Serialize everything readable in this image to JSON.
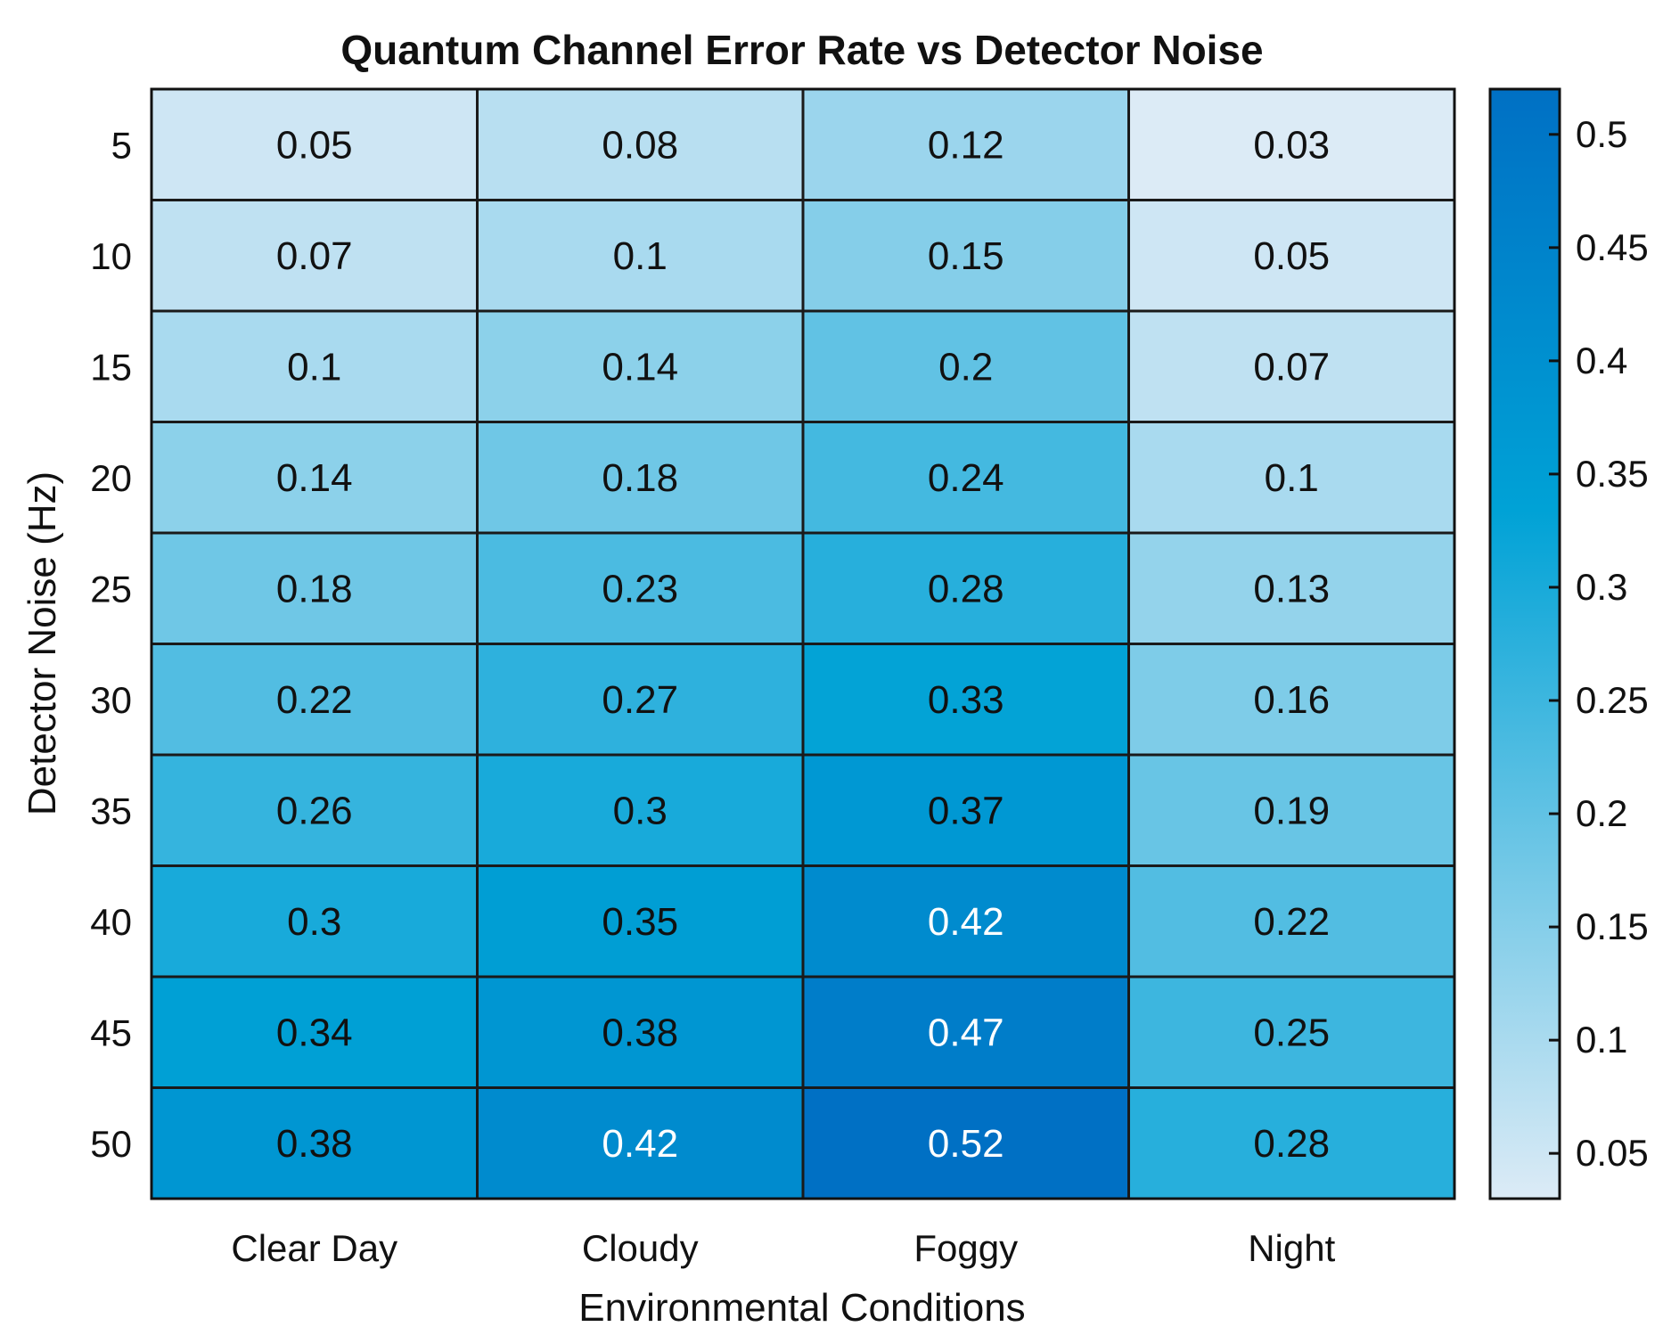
{
  "chart_data": {
    "type": "heatmap",
    "title": "Quantum Channel Error Rate vs Detector Noise",
    "xlabel": "Environmental Conditions",
    "ylabel": "Detector Noise (Hz)",
    "x_categories": [
      "Clear Day",
      "Cloudy",
      "Foggy",
      "Night"
    ],
    "y_categories": [
      "5",
      "10",
      "15",
      "20",
      "25",
      "30",
      "35",
      "40",
      "45",
      "50"
    ],
    "values": [
      [
        0.05,
        0.08,
        0.12,
        0.03
      ],
      [
        0.07,
        0.1,
        0.15,
        0.05
      ],
      [
        0.1,
        0.14,
        0.2,
        0.07
      ],
      [
        0.14,
        0.18,
        0.24,
        0.1
      ],
      [
        0.18,
        0.23,
        0.28,
        0.13
      ],
      [
        0.22,
        0.27,
        0.33,
        0.16
      ],
      [
        0.26,
        0.3,
        0.37,
        0.19
      ],
      [
        0.3,
        0.35,
        0.42,
        0.22
      ],
      [
        0.34,
        0.38,
        0.47,
        0.25
      ],
      [
        0.38,
        0.42,
        0.52,
        0.28
      ]
    ],
    "colorbar": {
      "range": [
        0.03,
        0.52
      ],
      "ticks": [
        0.05,
        0.1,
        0.15,
        0.2,
        0.25,
        0.3,
        0.35,
        0.4,
        0.45,
        0.5
      ],
      "tick_labels": [
        "0.05",
        "0.1",
        "0.15",
        "0.2",
        "0.25",
        "0.3",
        "0.35",
        "0.4",
        "0.45",
        "0.5"
      ],
      "color_low": "#dcebf6",
      "color_mid": "#00a2d6",
      "color_high": "#0070c4"
    },
    "text_color_dark": "#111111",
    "text_color_light": "#ffffff",
    "light_text_threshold": 0.4
  }
}
